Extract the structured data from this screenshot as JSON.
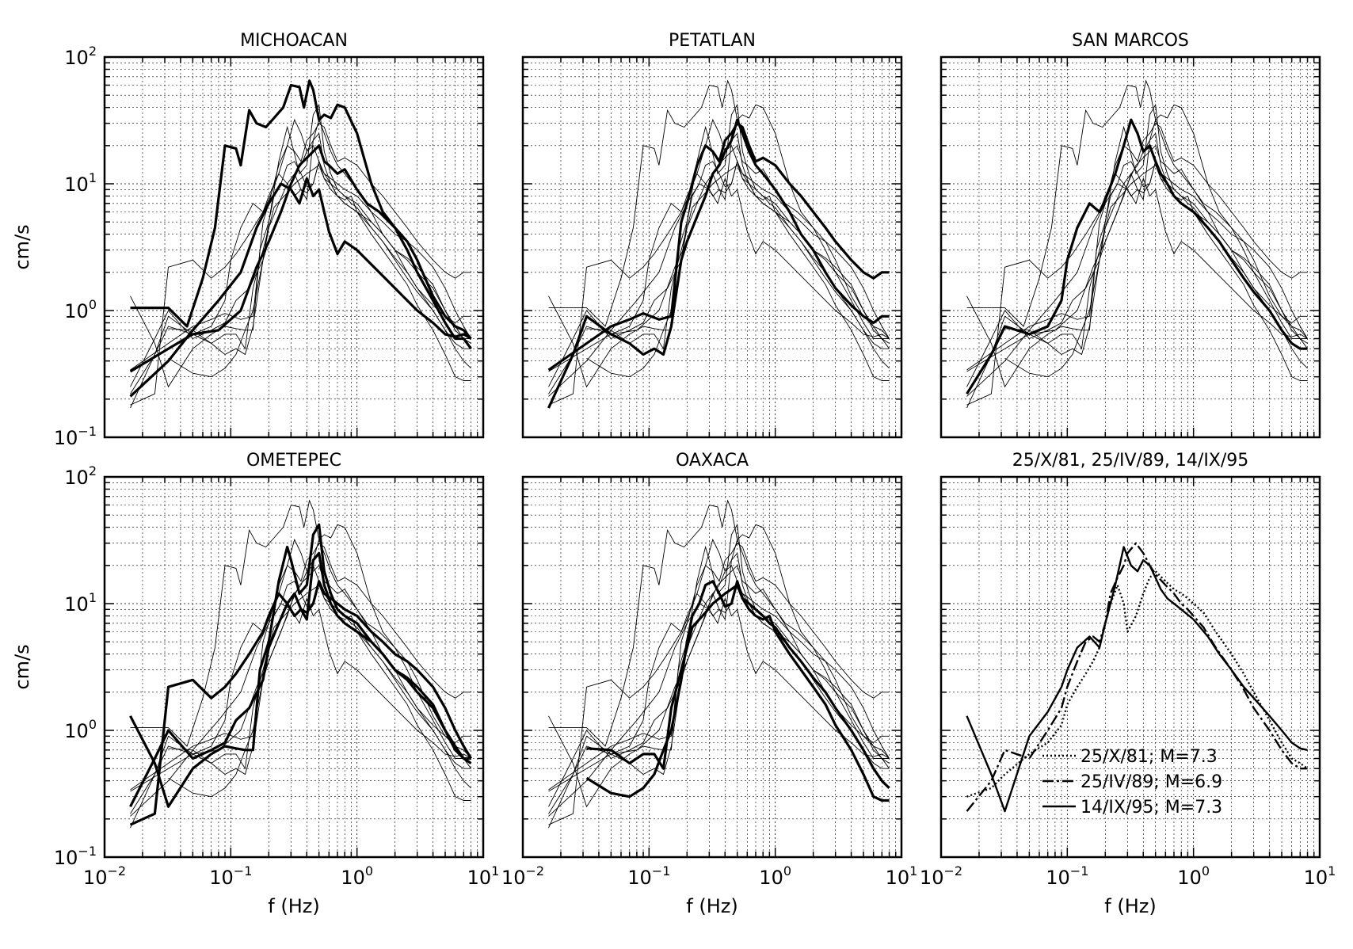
{
  "figure": {
    "y_label": "cm/s",
    "x_label": "f (Hz)"
  },
  "chart_data": [
    {
      "type": "line",
      "title": "MICHOACAN",
      "x_scale": "log",
      "y_scale": "log",
      "xlim": [
        0.01,
        10
      ],
      "ylim": [
        0.1,
        100
      ],
      "grid": true,
      "background_curves": "other events (thin lines, shared across panels)",
      "series": [
        {
          "name": "",
          "weight": "thick",
          "x": [
            0.016,
            0.032,
            0.045,
            0.06,
            0.075,
            0.09,
            0.11,
            0.12,
            0.14,
            0.16,
            0.19,
            0.22,
            0.26,
            0.3,
            0.35,
            0.38,
            0.42,
            0.45,
            0.5,
            0.55,
            0.62,
            0.7,
            0.8,
            1.0,
            1.3,
            1.6,
            2.0,
            2.5,
            3.0,
            4.0,
            5.0,
            6.0,
            7.0,
            8.0
          ],
          "y": [
            1.05,
            1.05,
            0.75,
            1.8,
            4.5,
            20,
            19,
            14,
            38,
            30,
            28,
            33,
            40,
            60,
            58,
            40,
            65,
            55,
            32,
            35,
            33,
            42,
            40,
            25,
            10,
            6,
            4.5,
            3.5,
            2.5,
            1.3,
            0.9,
            0.75,
            0.7,
            0.6
          ]
        },
        {
          "name": "",
          "weight": "thick",
          "x": [
            0.016,
            0.032,
            0.05,
            0.08,
            0.12,
            0.16,
            0.2,
            0.25,
            0.3,
            0.35,
            0.4,
            0.45,
            0.5,
            0.55,
            0.6,
            0.7,
            0.8,
            1.0,
            1.2,
            1.5,
            2.0,
            2.5,
            3.0,
            4.0,
            5.0,
            6.0,
            7.0,
            8.0
          ],
          "y": [
            0.33,
            0.5,
            0.65,
            0.7,
            1.0,
            2.2,
            3.5,
            6.0,
            10,
            14,
            16,
            18,
            20,
            15,
            14,
            12,
            13,
            9,
            7,
            6,
            4.5,
            3.0,
            2.0,
            1.2,
            0.8,
            0.6,
            0.6,
            0.5
          ]
        },
        {
          "name": "",
          "weight": "thick",
          "x": [
            0.016,
            0.032,
            0.05,
            0.08,
            0.12,
            0.16,
            0.2,
            0.25,
            0.3,
            0.35,
            0.4,
            0.45,
            0.5,
            0.55,
            0.6,
            0.7,
            0.8,
            1.0,
            1.5,
            2.0,
            3.0,
            4.0,
            5.0,
            6.0,
            7.0,
            8.0
          ],
          "y": [
            0.21,
            0.4,
            0.7,
            1.2,
            2.0,
            4.5,
            7.0,
            10,
            9,
            7,
            11,
            8,
            9,
            6,
            4.2,
            2.8,
            3.5,
            3.0,
            2.0,
            1.5,
            1.0,
            0.8,
            0.65,
            0.62,
            0.65,
            0.6
          ]
        }
      ]
    },
    {
      "type": "line",
      "title": "PETATLAN",
      "x_scale": "log",
      "y_scale": "log",
      "xlim": [
        0.01,
        10
      ],
      "ylim": [
        0.1,
        100
      ],
      "grid": true,
      "series": [
        {
          "name": "",
          "weight": "thick",
          "x": [
            0.016,
            0.032,
            0.05,
            0.07,
            0.09,
            0.12,
            0.15,
            0.18,
            0.2,
            0.24,
            0.28,
            0.32,
            0.36,
            0.4,
            0.45,
            0.5,
            0.55,
            0.62,
            0.7,
            0.8,
            1.0,
            1.3,
            1.6,
            2.0,
            2.5,
            3.0,
            4.0,
            5.0,
            6.0,
            7.0,
            8.0
          ],
          "y": [
            0.34,
            0.55,
            0.75,
            0.85,
            0.95,
            0.85,
            0.9,
            5.0,
            7.0,
            14,
            20,
            18,
            15,
            22,
            25,
            30,
            28,
            20,
            15,
            16,
            14,
            10,
            8,
            6,
            4.5,
            3.5,
            2.5,
            2.0,
            1.8,
            2.0,
            2.0
          ]
        },
        {
          "name": "",
          "weight": "thick",
          "x": [
            0.016,
            0.025,
            0.032,
            0.05,
            0.07,
            0.09,
            0.11,
            0.13,
            0.15,
            0.18,
            0.2,
            0.24,
            0.28,
            0.32,
            0.36,
            0.4,
            0.45,
            0.5,
            0.55,
            0.62,
            0.7,
            0.8,
            1.0,
            1.3,
            1.6,
            2.0,
            2.5,
            3.0,
            4.0,
            5.0,
            6.0,
            7.0,
            8.0
          ],
          "y": [
            0.17,
            0.45,
            0.9,
            0.65,
            0.55,
            0.45,
            0.5,
            0.45,
            0.75,
            2.5,
            3.5,
            5.5,
            8,
            12,
            14,
            18,
            22,
            32,
            25,
            18,
            14,
            12,
            9,
            6,
            4,
            3,
            2,
            1.5,
            1.1,
            0.9,
            0.8,
            0.9,
            0.9
          ]
        }
      ]
    },
    {
      "type": "line",
      "title": "SAN MARCOS",
      "x_scale": "log",
      "y_scale": "log",
      "xlim": [
        0.01,
        10
      ],
      "ylim": [
        0.1,
        100
      ],
      "grid": true,
      "series": [
        {
          "name": "",
          "weight": "thick",
          "x": [
            0.016,
            0.025,
            0.032,
            0.05,
            0.07,
            0.09,
            0.1,
            0.12,
            0.15,
            0.18,
            0.2,
            0.24,
            0.28,
            0.32,
            0.36,
            0.4,
            0.45,
            0.5,
            0.55,
            0.62,
            0.7,
            0.8,
            1.0,
            1.3,
            1.6,
            2.0,
            2.5,
            3.0,
            4.0,
            5.0,
            6.0,
            7.0,
            8.0
          ],
          "y": [
            0.22,
            0.45,
            0.75,
            0.65,
            0.75,
            1.2,
            2.5,
            4.5,
            7,
            6,
            7.5,
            12,
            20,
            32,
            25,
            18,
            20,
            15,
            12,
            10,
            8,
            7,
            6,
            4.5,
            3.5,
            2.5,
            1.8,
            1.4,
            1.0,
            0.7,
            0.55,
            0.5,
            0.5
          ]
        }
      ]
    },
    {
      "type": "line",
      "title": "OMETEPEC",
      "x_scale": "log",
      "y_scale": "log",
      "xlim": [
        0.01,
        10
      ],
      "ylim": [
        0.1,
        100
      ],
      "grid": true,
      "series": [
        {
          "name": "",
          "weight": "thick",
          "x": [
            0.016,
            0.025,
            0.032,
            0.05,
            0.07,
            0.09,
            0.11,
            0.13,
            0.15,
            0.17,
            0.2,
            0.24,
            0.28,
            0.3,
            0.35,
            0.4,
            0.45,
            0.5,
            0.55,
            0.62,
            0.7,
            0.8,
            1.0,
            1.3,
            1.6,
            2.0,
            2.5,
            3.0,
            4.0,
            5.0,
            6.0,
            7.0,
            8.0
          ],
          "y": [
            1.3,
            0.55,
            0.25,
            0.5,
            0.65,
            0.75,
            0.72,
            0.7,
            0.7,
            3.0,
            5.0,
            15,
            28,
            22,
            12,
            14,
            35,
            42,
            18,
            12,
            9,
            8,
            7,
            5,
            4,
            3,
            2.6,
            2.2,
            1.6,
            1.0,
            0.7,
            0.6,
            0.6
          ]
        },
        {
          "name": "",
          "weight": "thick",
          "x": [
            0.016,
            0.025,
            0.032,
            0.05,
            0.07,
            0.09,
            0.11,
            0.14,
            0.18,
            0.2,
            0.24,
            0.28,
            0.32,
            0.36,
            0.4,
            0.45,
            0.5,
            0.55,
            0.62,
            0.7,
            0.8,
            1.0,
            1.3,
            1.6,
            2.0,
            2.5,
            3.0,
            4.0,
            5.0,
            6.0,
            7.0,
            8.0
          ],
          "y": [
            0.18,
            0.22,
            2.2,
            2.5,
            1.8,
            2.2,
            2.8,
            4.0,
            6.0,
            8.0,
            12,
            10,
            8.0,
            9.0,
            7.5,
            22,
            25,
            14,
            10,
            8,
            7,
            6,
            5,
            4,
            3,
            2.5,
            2.0,
            1.5,
            1.0,
            0.75,
            0.6,
            0.55
          ]
        },
        {
          "name": "",
          "weight": "thick",
          "x": [
            0.016,
            0.025,
            0.032,
            0.05,
            0.07,
            0.09,
            0.11,
            0.14,
            0.18,
            0.2,
            0.24,
            0.28,
            0.32,
            0.36,
            0.4,
            0.45,
            0.5,
            0.55,
            0.62,
            0.7,
            0.8,
            1.0,
            1.3,
            1.6,
            2.0,
            2.5,
            3.0,
            4.0,
            5.0,
            6.0,
            7.0,
            8.0
          ],
          "y": [
            0.25,
            0.6,
            1.0,
            0.6,
            0.7,
            0.8,
            1.2,
            1.5,
            2.5,
            4.5,
            7.0,
            10,
            12,
            9,
            8.5,
            10,
            15,
            12,
            11,
            10,
            9,
            8,
            6,
            5,
            4,
            3.5,
            3.0,
            2.2,
            1.5,
            1.0,
            0.75,
            0.6
          ]
        }
      ]
    },
    {
      "type": "line",
      "title": "OAXACA",
      "x_scale": "log",
      "y_scale": "log",
      "xlim": [
        0.01,
        10
      ],
      "ylim": [
        0.1,
        100
      ],
      "grid": true,
      "series": [
        {
          "name": "",
          "weight": "thick",
          "x": [
            0.032,
            0.05,
            0.07,
            0.09,
            0.11,
            0.13,
            0.15,
            0.18,
            0.2,
            0.22,
            0.25,
            0.28,
            0.32,
            0.36,
            0.4,
            0.45,
            0.5,
            0.55,
            0.62,
            0.7,
            0.8,
            0.9,
            1.0,
            1.3,
            1.6,
            2.0,
            2.5,
            3.0,
            4.0,
            5.0,
            6.0,
            7.0,
            8.0
          ],
          "y": [
            0.42,
            0.32,
            0.3,
            0.35,
            0.45,
            0.7,
            1.0,
            2.5,
            5.0,
            8.0,
            10,
            14,
            15,
            12,
            9.5,
            10,
            15,
            11,
            9,
            8,
            7.5,
            8,
            6,
            4,
            3,
            2.2,
            1.6,
            1.1,
            0.7,
            0.45,
            0.3,
            0.28,
            0.28
          ]
        },
        {
          "name": "",
          "weight": "thick",
          "x": [
            0.032,
            0.05,
            0.07,
            0.09,
            0.11,
            0.13,
            0.15,
            0.18,
            0.2,
            0.22,
            0.25,
            0.28,
            0.32,
            0.36,
            0.4,
            0.45,
            0.5,
            0.55,
            0.62,
            0.7,
            0.8,
            0.9,
            1.0,
            1.3,
            1.6,
            2.0,
            2.5,
            3.0,
            4.0,
            5.0,
            6.0,
            7.0,
            8.0
          ],
          "y": [
            0.72,
            0.7,
            0.55,
            0.65,
            0.65,
            0.5,
            1.5,
            3.0,
            4.5,
            6.5,
            7.5,
            8.5,
            10,
            11,
            12,
            13,
            14,
            11,
            10,
            9,
            8,
            7,
            6.5,
            4.5,
            3.5,
            2.6,
            2.0,
            1.5,
            1.0,
            0.7,
            0.5,
            0.4,
            0.35
          ]
        }
      ]
    },
    {
      "type": "line",
      "title": "25/X/81, 25/IV/89, 14/IX/95",
      "x_scale": "log",
      "y_scale": "log",
      "xlim": [
        0.01,
        10
      ],
      "ylim": [
        0.1,
        100
      ],
      "grid": true,
      "legend_placement": "bottom-left",
      "series": [
        {
          "name": "25/X/81; M=7.3",
          "style": "dotted",
          "x": [
            0.016,
            0.025,
            0.032,
            0.05,
            0.07,
            0.09,
            0.1,
            0.12,
            0.14,
            0.16,
            0.18,
            0.2,
            0.22,
            0.25,
            0.28,
            0.3,
            0.35,
            0.4,
            0.45,
            0.5,
            0.6,
            0.7,
            0.8,
            0.9,
            1.0,
            1.2,
            1.5,
            2.0,
            2.5,
            3.0,
            4.0,
            5.0,
            6.0,
            7.0,
            8.0
          ],
          "y": [
            0.3,
            0.35,
            0.45,
            0.65,
            0.8,
            1.1,
            1.6,
            2.2,
            2.8,
            3.5,
            4.5,
            7.0,
            10,
            14,
            10,
            6.0,
            8.0,
            12,
            16,
            18,
            15,
            13,
            12,
            11,
            10,
            8.5,
            6.0,
            4.0,
            2.8,
            2.0,
            1.2,
            0.8,
            0.6,
            0.55,
            0.5
          ]
        },
        {
          "name": "25/IV/89; M=6.9",
          "style": "dash-dot",
          "x": [
            0.016,
            0.025,
            0.032,
            0.05,
            0.07,
            0.09,
            0.1,
            0.12,
            0.14,
            0.16,
            0.18,
            0.2,
            0.22,
            0.25,
            0.28,
            0.3,
            0.35,
            0.4,
            0.45,
            0.5,
            0.6,
            0.7,
            0.8,
            0.9,
            1.0,
            1.2,
            1.5,
            2.0,
            2.5,
            3.0,
            4.0,
            5.0,
            6.0,
            7.0,
            8.0
          ],
          "y": [
            0.23,
            0.4,
            0.7,
            0.6,
            1.0,
            1.5,
            2.2,
            3.5,
            5.0,
            5.5,
            5.0,
            7.0,
            12,
            16,
            20,
            25,
            30,
            25,
            20,
            17,
            14,
            12,
            10,
            9,
            8,
            6.5,
            4.5,
            3.0,
            2.1,
            1.5,
            1.0,
            0.7,
            0.55,
            0.5,
            0.5
          ]
        },
        {
          "name": "14/IX/95; M=7.3",
          "style": "solid",
          "x": [
            0.016,
            0.025,
            0.032,
            0.05,
            0.07,
            0.09,
            0.1,
            0.12,
            0.15,
            0.18,
            0.2,
            0.24,
            0.28,
            0.32,
            0.36,
            0.4,
            0.45,
            0.5,
            0.55,
            0.62,
            0.7,
            0.8,
            1.0,
            1.3,
            1.6,
            2.0,
            2.5,
            3.0,
            4.0,
            5.0,
            6.0,
            7.0,
            8.0
          ],
          "y": [
            1.3,
            0.45,
            0.23,
            0.9,
            1.4,
            2.2,
            3.0,
            4.5,
            5.5,
            4.5,
            7.0,
            14,
            28,
            20,
            18,
            22,
            20,
            16,
            13,
            11,
            10,
            9,
            7.5,
            5.5,
            4.0,
            3.0,
            2.2,
            1.8,
            1.3,
            1.0,
            0.8,
            0.72,
            0.7
          ]
        }
      ]
    }
  ],
  "axis_ticks": {
    "x": [
      {
        "base": "10",
        "exp": "−2"
      },
      {
        "base": "10",
        "exp": "−1"
      },
      {
        "base": "10",
        "exp": "0"
      },
      {
        "base": "10",
        "exp": "1"
      }
    ],
    "y": [
      {
        "base": "10",
        "exp": "−1"
      },
      {
        "base": "10",
        "exp": "0"
      },
      {
        "base": "10",
        "exp": "1"
      },
      {
        "base": "10",
        "exp": "2"
      }
    ]
  }
}
